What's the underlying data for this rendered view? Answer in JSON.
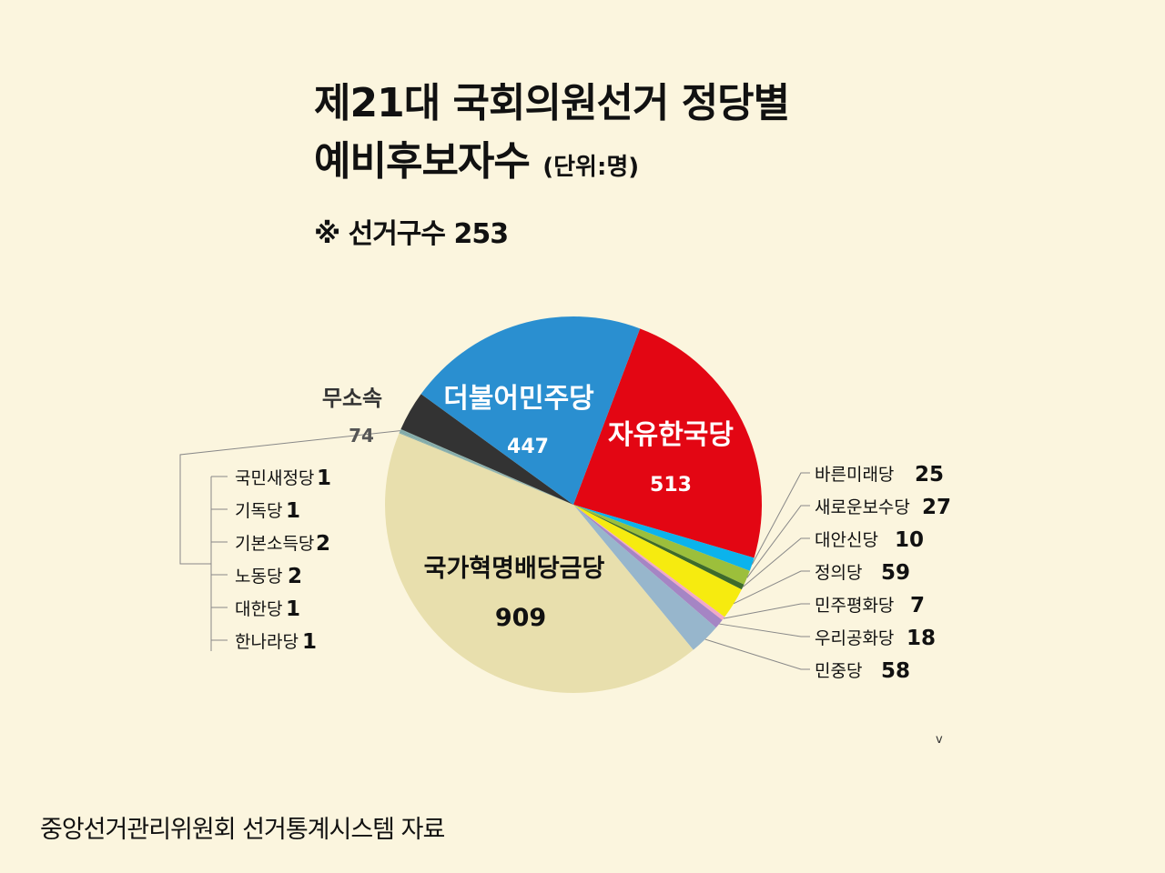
{
  "header": {
    "title_line1": "제21대 국회의원선거 정당별",
    "title_line2": "예비후보자수",
    "unit": "(단위:명)",
    "note": "※ 선거구수 253"
  },
  "footer": {
    "source": "중앙선거관리위원회 선거통계시스템  자료",
    "mark": "v"
  },
  "chart_data": {
    "type": "pie",
    "start_angle_deg": 20.7,
    "direction": "clockwise",
    "slices": [
      {
        "name": "자유한국당",
        "value": 513,
        "color": "#e30613"
      },
      {
        "name": "바른미래당",
        "value": 25,
        "color": "#0bb3ec"
      },
      {
        "name": "새로운보수당",
        "value": 27,
        "color": "#9cbf3b"
      },
      {
        "name": "대안신당",
        "value": 10,
        "color": "#3e6b2b"
      },
      {
        "name": "정의당",
        "value": 59,
        "color": "#f6eb0f"
      },
      {
        "name": "민주평화당",
        "value": 7,
        "color": "#f2a8c7"
      },
      {
        "name": "우리공화당",
        "value": 18,
        "color": "#a585c4"
      },
      {
        "name": "민중당",
        "value": 58,
        "color": "#97b6cc"
      },
      {
        "name": "국가혁명배당금당",
        "value": 909,
        "color": "#e8dfad"
      },
      {
        "name": "국민새정당",
        "value": 1,
        "color": "#7aa6a6"
      },
      {
        "name": "기독당",
        "value": 1,
        "color": "#7aa6a6"
      },
      {
        "name": "기본소득당",
        "value": 2,
        "color": "#7aa6a6"
      },
      {
        "name": "노동당",
        "value": 2,
        "color": "#7aa6a6"
      },
      {
        "name": "대한당",
        "value": 1,
        "color": "#7aa6a6"
      },
      {
        "name": "한나라당",
        "value": 1,
        "color": "#7aa6a6"
      },
      {
        "name": "무소속",
        "value": 74,
        "color": "#333333"
      },
      {
        "name": "더불어민주당",
        "value": 447,
        "color": "#2a8fd0"
      }
    ]
  }
}
